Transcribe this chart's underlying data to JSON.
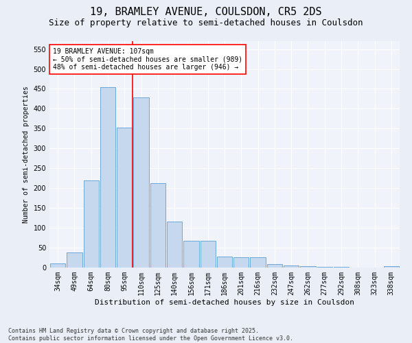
{
  "title1": "19, BRAMLEY AVENUE, COULSDON, CR5 2DS",
  "title2": "Size of property relative to semi-detached houses in Coulsdon",
  "xlabel": "Distribution of semi-detached houses by size in Coulsdon",
  "ylabel": "Number of semi-detached properties",
  "categories": [
    "34sqm",
    "49sqm",
    "64sqm",
    "80sqm",
    "95sqm",
    "110sqm",
    "125sqm",
    "140sqm",
    "156sqm",
    "171sqm",
    "186sqm",
    "201sqm",
    "216sqm",
    "232sqm",
    "247sqm",
    "262sqm",
    "277sqm",
    "292sqm",
    "308sqm",
    "323sqm",
    "338sqm"
  ],
  "values": [
    10,
    38,
    220,
    455,
    352,
    428,
    213,
    115,
    68,
    68,
    27,
    26,
    26,
    9,
    5,
    4,
    1,
    1,
    0,
    0,
    3
  ],
  "bar_color": "#c5d8ed",
  "bar_edge_color": "#5a9fd4",
  "vline_index": 5,
  "vline_color": "red",
  "annotation_text": "19 BRAMLEY AVENUE: 107sqm\n← 50% of semi-detached houses are smaller (989)\n48% of semi-detached houses are larger (946) →",
  "annotation_box_color": "white",
  "annotation_box_edge": "red",
  "ylim": [
    0,
    570
  ],
  "yticks": [
    0,
    50,
    100,
    150,
    200,
    250,
    300,
    350,
    400,
    450,
    500,
    550
  ],
  "footnote": "Contains HM Land Registry data © Crown copyright and database right 2025.\nContains public sector information licensed under the Open Government Licence v3.0.",
  "bg_color": "#eaeff7",
  "plot_bg_color": "#f0f4fa",
  "grid_color": "white",
  "title1_fontsize": 11,
  "title2_fontsize": 9,
  "annotation_fontsize": 7,
  "axis_fontsize": 7,
  "xlabel_fontsize": 8,
  "ylabel_fontsize": 7,
  "footnote_fontsize": 6
}
